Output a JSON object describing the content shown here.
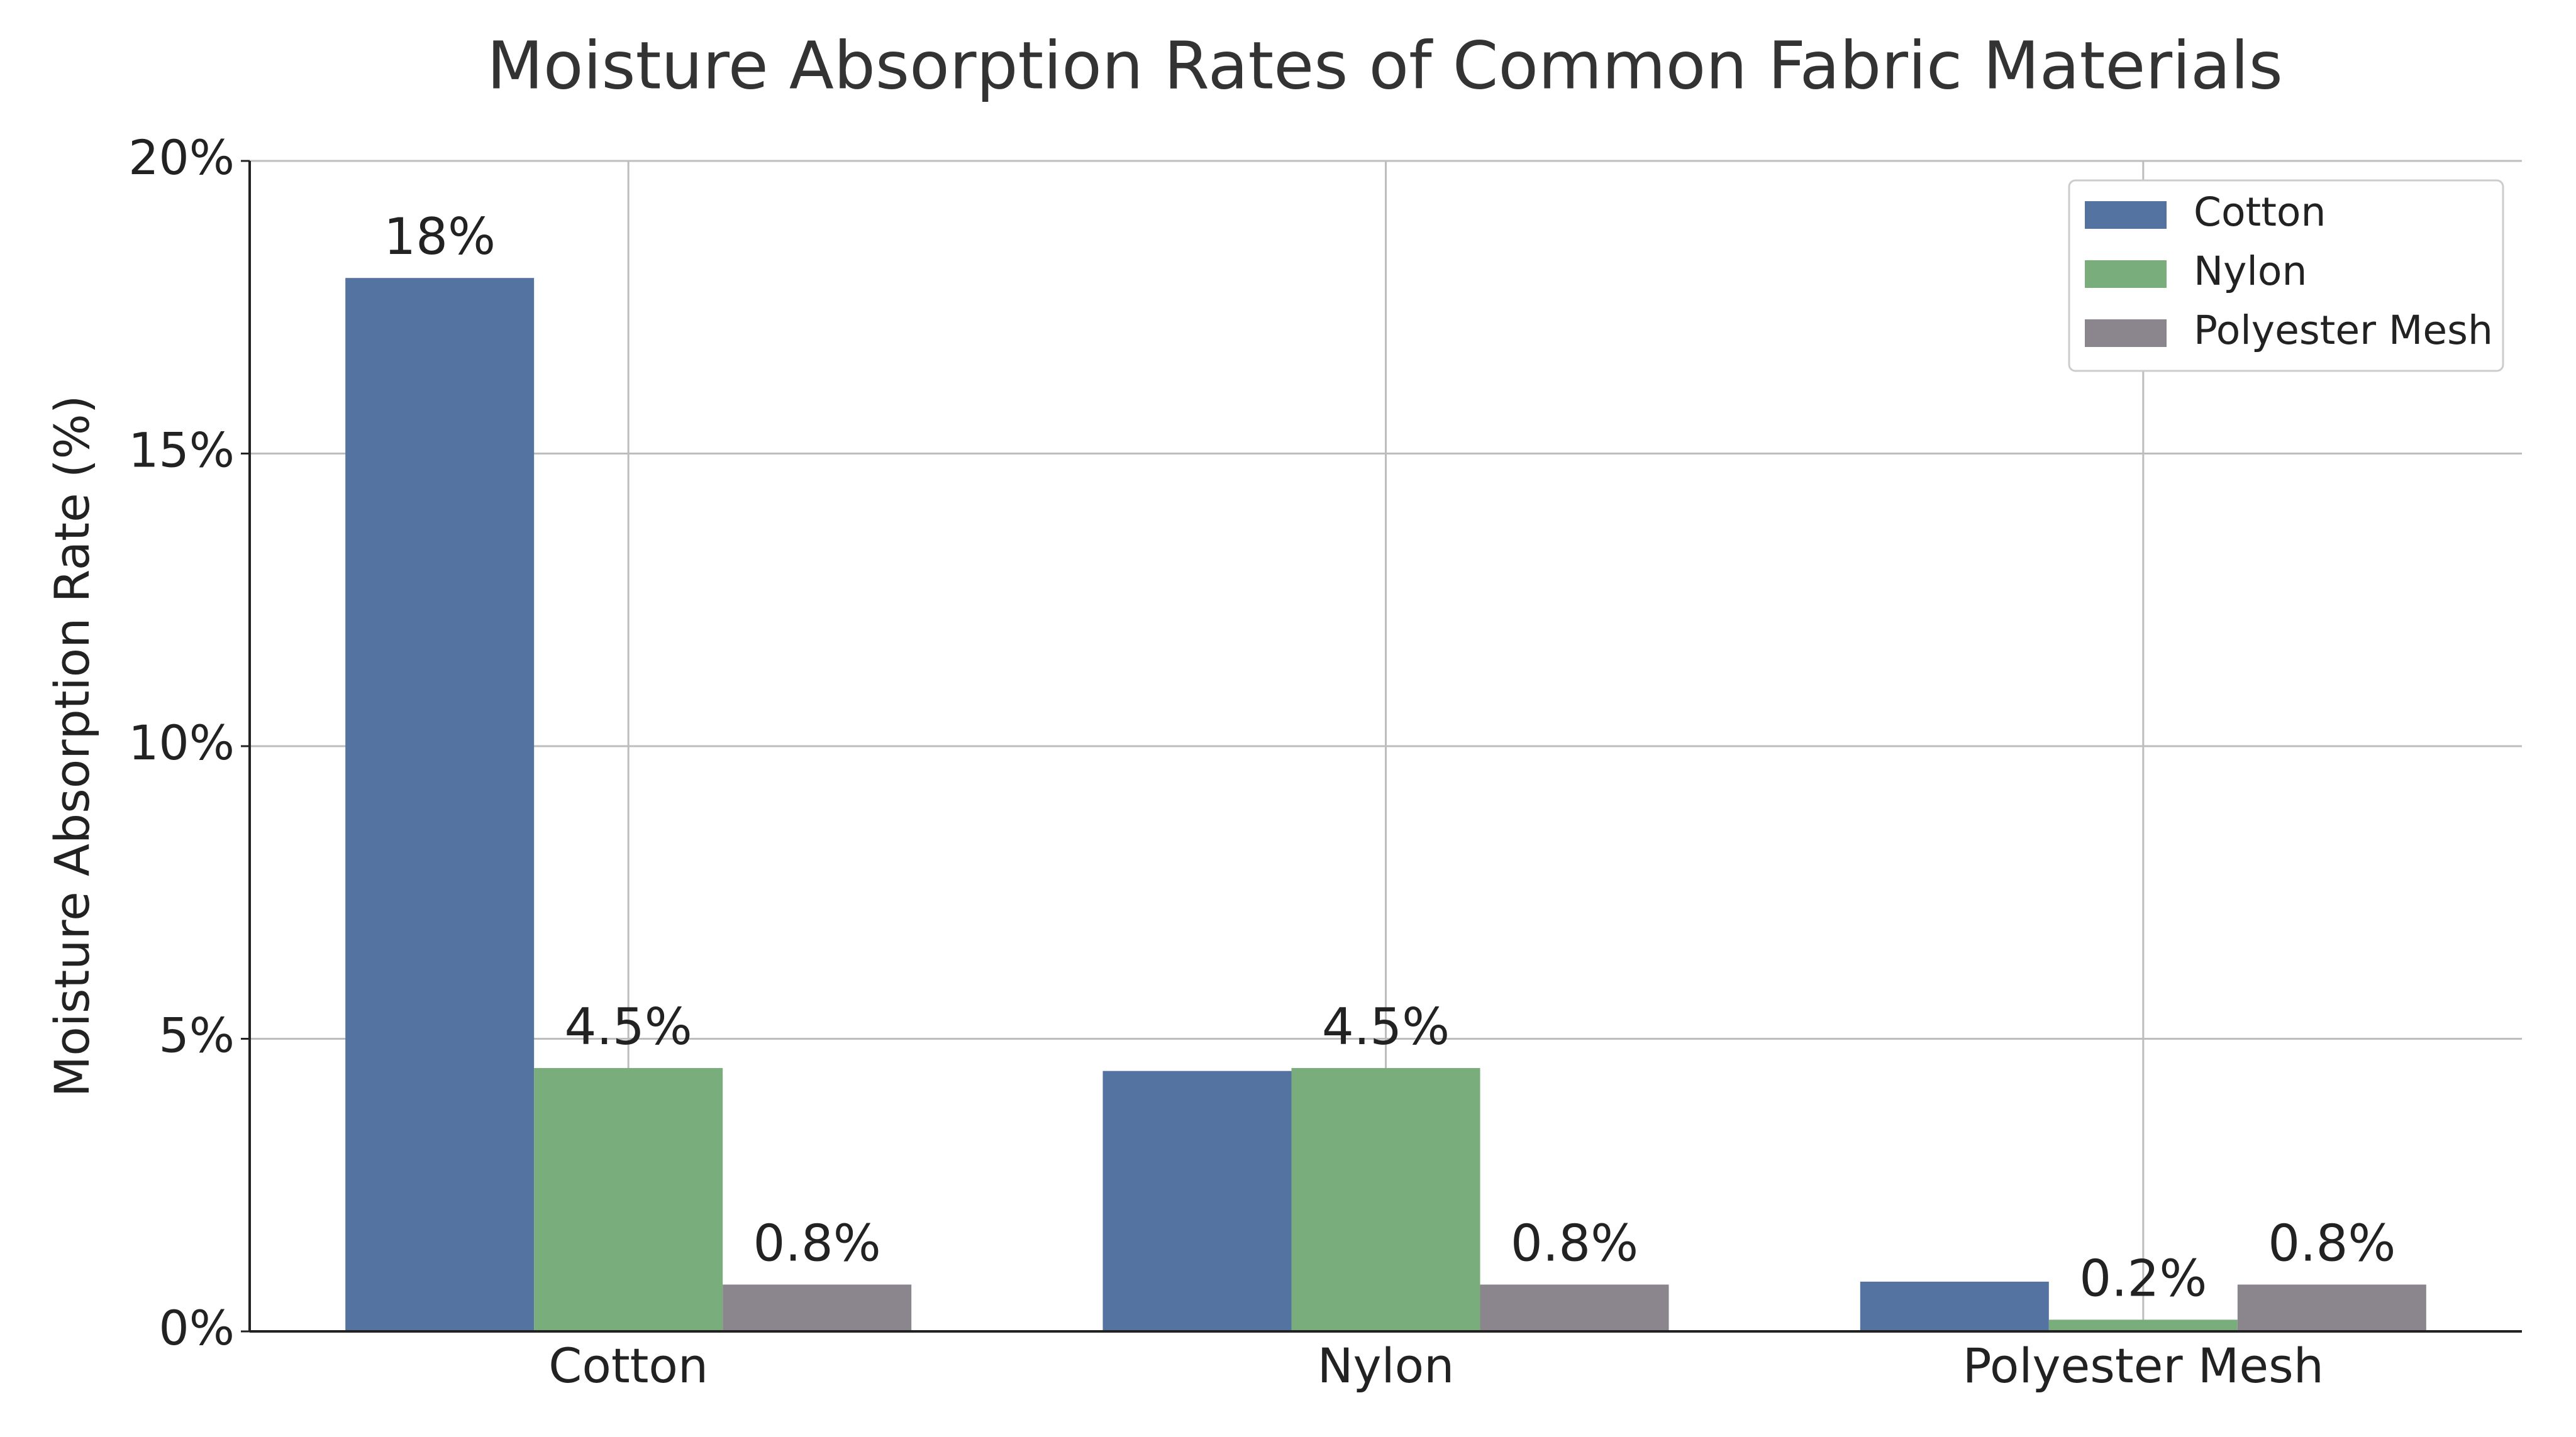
{
  "chart_data": {
    "type": "bar",
    "title": "Moisture Absorption Rates of Common Fabric Materials",
    "y_label": "Moisture Absorption Rate (%)",
    "categories": [
      "Cotton",
      "Nylon",
      "Polyester Mesh"
    ],
    "series": [
      {
        "name": "Cotton",
        "color": "#5573a0",
        "values": [
          18,
          4.45,
          0.85
        ],
        "value_labels": [
          "18%",
          null,
          null
        ]
      },
      {
        "name": "Nylon",
        "color": "#79ad7b",
        "values": [
          4.5,
          4.5,
          0.2
        ],
        "value_labels": [
          "4.5%",
          "4.5%",
          "0.2%"
        ]
      },
      {
        "name": "Polyester Mesh",
        "color": "#8b868d",
        "values": [
          0.8,
          0.8,
          0.8
        ],
        "value_labels": [
          "0.8%",
          "0.8%",
          "0.8%"
        ]
      }
    ],
    "ylim": [
      0,
      20
    ],
    "yticks": [
      {
        "value": 0,
        "label": "0%"
      },
      {
        "value": 5,
        "label": "5%"
      },
      {
        "value": 10,
        "label": "10%"
      },
      {
        "value": 15,
        "label": "15%"
      },
      {
        "value": 20,
        "label": "20%"
      }
    ],
    "grid": true,
    "legend": "upper right"
  }
}
